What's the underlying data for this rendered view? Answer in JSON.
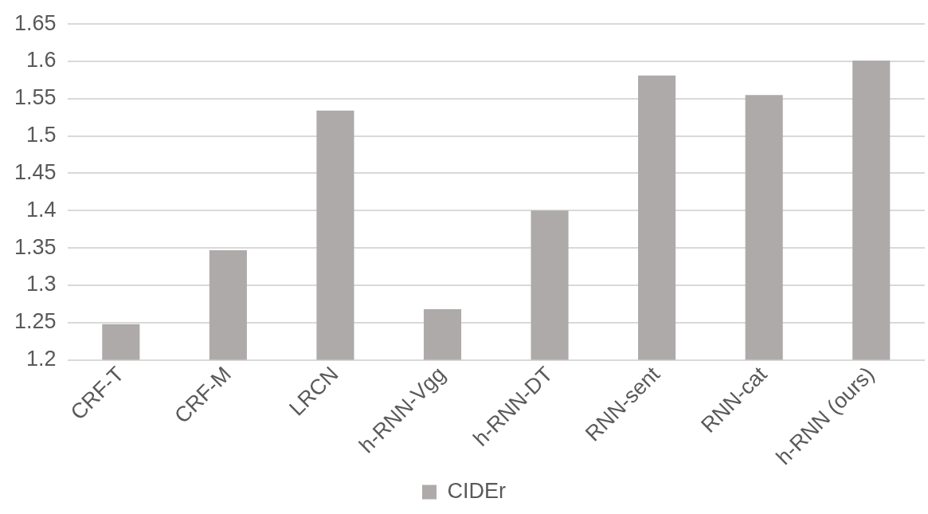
{
  "chart_data": {
    "type": "bar",
    "categories": [
      "CRF-T",
      "CRF-M",
      "LRCN",
      "h-RNN-Vgg",
      "h-RNN-DT",
      "RNN-sent",
      "RNN-cat",
      "h-RNN (ours)"
    ],
    "series": [
      {
        "name": "CIDEr",
        "color": "#aeaaa9",
        "values": [
          1.248,
          1.347,
          1.534,
          1.268,
          1.4,
          1.581,
          1.555,
          1.601
        ]
      }
    ],
    "ylim": [
      1.2,
      1.65
    ],
    "yticks": [
      1.2,
      1.25,
      1.3,
      1.35,
      1.4,
      1.45,
      1.5,
      1.55,
      1.6,
      1.65
    ],
    "grid": "y",
    "legend": "bottom"
  }
}
